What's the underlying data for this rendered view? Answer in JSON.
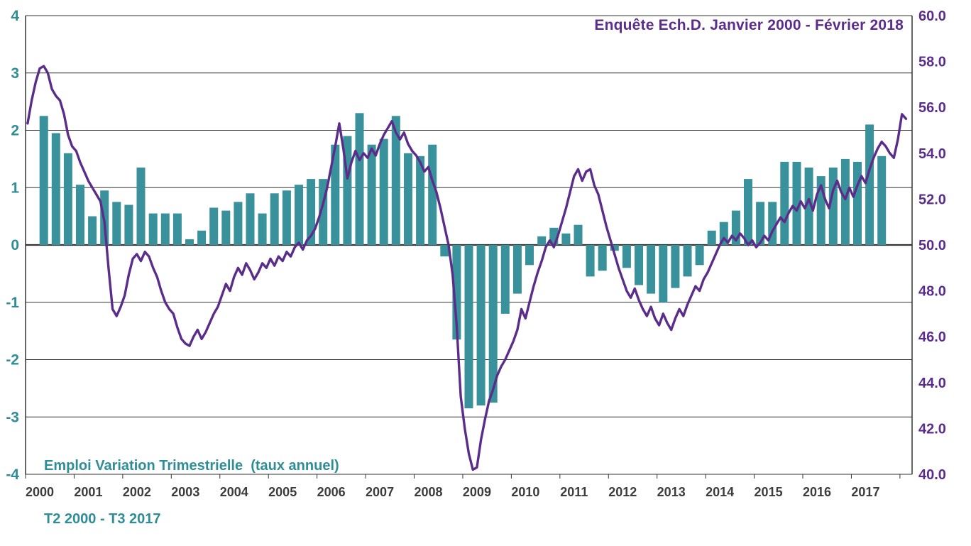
{
  "annotations": {
    "line_series_label": "Enquête Ech.D. Janvier 2000 - Février 2018",
    "bar_series_label_line1": "Emploi Variation Trimestrielle  (taux annuel)",
    "bar_series_label_line2": "T2 2000 - T3 2017"
  },
  "colors": {
    "background": "#ffffff",
    "bar": "#39919B",
    "line": "#5B2D8A",
    "left_axis_text": "#2E8D96",
    "right_axis_text": "#5B2D8A",
    "x_axis_text": "#3C3C3C",
    "grid": "#333333"
  },
  "chart_data": {
    "type": "combo",
    "title": "",
    "grid": true,
    "legend_position": "in-plot annotations",
    "x_axis": {
      "unit": "year",
      "tick_labels": [
        "2000",
        "2001",
        "2002",
        "2003",
        "2004",
        "2005",
        "2006",
        "2007",
        "2008",
        "2009",
        "2010",
        "2011",
        "2012",
        "2013",
        "2014",
        "2015",
        "2016",
        "2017"
      ]
    },
    "left_axis": {
      "min": -4,
      "max": 4,
      "tick_labels": [
        "4",
        "3",
        "2",
        "1",
        "0",
        "-1",
        "-2",
        "-3",
        "-4"
      ],
      "color": "#2E8D96"
    },
    "right_axis": {
      "min": 40,
      "max": 60,
      "tick_labels": [
        "60.0",
        "58.0",
        "56.0",
        "54.0",
        "52.0",
        "50.0",
        "48.0",
        "46.0",
        "44.0",
        "42.0",
        "40.0"
      ],
      "color": "#5B2D8A"
    },
    "series": [
      {
        "name": "Emploi Variation Trimestrielle (taux annuel)",
        "type": "bar",
        "axis": "left",
        "color": "#39919B",
        "frequency": "quarterly",
        "start": "2000Q2",
        "end": "2017Q3",
        "values": [
          2.25,
          1.95,
          1.6,
          1.05,
          0.5,
          0.95,
          0.75,
          0.7,
          1.35,
          0.55,
          0.55,
          0.55,
          0.1,
          0.25,
          0.65,
          0.6,
          0.75,
          0.9,
          0.55,
          0.9,
          0.95,
          1.05,
          1.15,
          1.15,
          1.75,
          1.9,
          2.3,
          1.75,
          1.85,
          2.25,
          1.6,
          1.55,
          1.75,
          -0.2,
          -1.65,
          -2.85,
          -2.8,
          -2.75,
          -1.2,
          -0.85,
          -0.35,
          0.15,
          0.3,
          0.2,
          0.35,
          -0.55,
          -0.45,
          -0.1,
          -0.4,
          -0.7,
          -0.85,
          -1.0,
          -0.75,
          -0.55,
          -0.35,
          0.25,
          0.4,
          0.6,
          1.15,
          0.75,
          0.75,
          1.45,
          1.45,
          1.35,
          1.2,
          1.35,
          1.5,
          1.45,
          2.1,
          1.55
        ]
      },
      {
        "name": "Enquête Ech.D.",
        "type": "line",
        "axis": "right",
        "color": "#5B2D8A",
        "frequency": "monthly",
        "start": "2000-01",
        "end": "2018-02",
        "values": [
          55.3,
          56.3,
          57.1,
          57.7,
          57.8,
          57.5,
          56.8,
          56.5,
          56.3,
          55.7,
          54.8,
          54.3,
          54.1,
          53.6,
          53.2,
          52.8,
          52.5,
          52.2,
          51.9,
          51.0,
          49.0,
          47.2,
          46.9,
          47.3,
          47.8,
          48.7,
          49.4,
          49.6,
          49.3,
          49.7,
          49.5,
          49.0,
          48.6,
          48.0,
          47.5,
          47.2,
          47.0,
          46.4,
          45.9,
          45.7,
          45.6,
          46.0,
          46.3,
          45.9,
          46.2,
          46.6,
          47.0,
          47.3,
          47.8,
          48.3,
          48.0,
          48.6,
          49.0,
          48.7,
          49.2,
          48.9,
          48.5,
          48.8,
          49.2,
          49.0,
          49.4,
          49.1,
          49.5,
          49.3,
          49.7,
          49.5,
          49.9,
          50.1,
          49.8,
          50.2,
          50.4,
          50.7,
          51.2,
          51.8,
          52.5,
          53.4,
          54.3,
          55.3,
          54.2,
          52.9,
          53.6,
          54.1,
          53.7,
          54.0,
          53.8,
          54.2,
          53.9,
          54.4,
          54.8,
          55.1,
          55.4,
          54.9,
          54.6,
          54.9,
          54.4,
          54.1,
          53.9,
          53.6,
          53.2,
          53.4,
          52.8,
          52.3,
          51.6,
          50.8,
          50.0,
          48.7,
          46.5,
          43.4,
          42.0,
          40.9,
          40.2,
          40.3,
          41.5,
          42.4,
          43.2,
          43.7,
          44.3,
          44.7,
          45.0,
          45.4,
          45.8,
          46.3,
          47.2,
          46.8,
          47.5,
          48.2,
          48.8,
          49.3,
          49.9,
          50.2,
          49.9,
          50.4,
          51.0,
          51.6,
          52.3,
          53.0,
          53.3,
          52.8,
          53.2,
          53.3,
          52.6,
          52.2,
          51.5,
          50.8,
          50.2,
          49.6,
          49.0,
          48.5,
          48.0,
          47.7,
          48.1,
          47.6,
          47.2,
          46.9,
          47.3,
          46.8,
          46.5,
          47.0,
          46.6,
          46.3,
          46.8,
          47.2,
          46.9,
          47.4,
          47.8,
          48.2,
          48.0,
          48.5,
          48.8,
          49.2,
          49.6,
          50.0,
          50.3,
          50.1,
          50.4,
          50.2,
          50.5,
          50.3,
          50.0,
          50.2,
          49.9,
          50.1,
          50.4,
          50.2,
          50.6,
          50.9,
          51.2,
          51.0,
          51.4,
          51.7,
          51.5,
          51.9,
          51.6,
          52.0,
          51.5,
          52.2,
          52.6,
          52.0,
          51.6,
          52.4,
          52.8,
          52.3,
          52.0,
          52.5,
          52.1,
          52.6,
          53.0,
          52.7,
          53.3,
          53.8,
          54.2,
          54.5,
          54.3,
          54.0,
          53.8,
          54.6,
          55.7,
          55.5
        ]
      }
    ]
  }
}
